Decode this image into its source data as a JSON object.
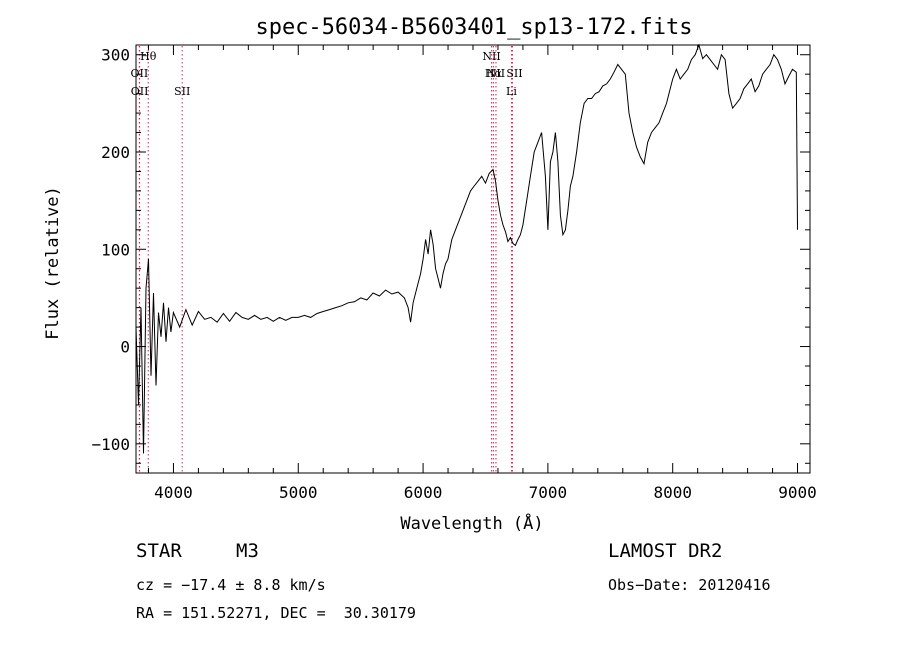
{
  "chart_data": {
    "type": "line",
    "title": "spec-56034-B5603401_sp13-172.fits",
    "xlabel": "Wavelength (Å)",
    "ylabel": "Flux (relative)",
    "xlim": [
      3700,
      9100
    ],
    "ylim": [
      -130,
      310
    ],
    "xticks": [
      4000,
      5000,
      6000,
      7000,
      8000,
      9000
    ],
    "yticks": [
      -100,
      0,
      100,
      200,
      300
    ],
    "series": [
      {
        "name": "flux",
        "x": [
          3700,
          3720,
          3740,
          3760,
          3780,
          3800,
          3820,
          3840,
          3860,
          3880,
          3900,
          3920,
          3940,
          3960,
          3980,
          4000,
          4050,
          4100,
          4150,
          4200,
          4250,
          4300,
          4350,
          4400,
          4450,
          4500,
          4550,
          4600,
          4650,
          4700,
          4750,
          4800,
          4850,
          4900,
          4950,
          5000,
          5050,
          5100,
          5150,
          5200,
          5250,
          5300,
          5350,
          5400,
          5450,
          5500,
          5550,
          5600,
          5650,
          5700,
          5750,
          5800,
          5850,
          5880,
          5900,
          5920,
          5950,
          5980,
          6000,
          6020,
          6040,
          6060,
          6080,
          6100,
          6120,
          6140,
          6160,
          6180,
          6200,
          6230,
          6260,
          6290,
          6320,
          6350,
          6380,
          6410,
          6440,
          6470,
          6500,
          6530,
          6560,
          6580,
          6600,
          6620,
          6640,
          6660,
          6680,
          6700,
          6720,
          6740,
          6760,
          6780,
          6800,
          6830,
          6860,
          6890,
          6920,
          6950,
          6980,
          7000,
          7020,
          7040,
          7060,
          7080,
          7100,
          7120,
          7140,
          7160,
          7180,
          7200,
          7230,
          7260,
          7290,
          7320,
          7350,
          7380,
          7410,
          7440,
          7470,
          7500,
          7530,
          7560,
          7590,
          7620,
          7650,
          7680,
          7710,
          7740,
          7770,
          7800,
          7830,
          7860,
          7890,
          7920,
          7950,
          7980,
          8000,
          8030,
          8060,
          8090,
          8120,
          8150,
          8180,
          8210,
          8240,
          8270,
          8300,
          8330,
          8360,
          8390,
          8420,
          8450,
          8480,
          8510,
          8540,
          8570,
          8600,
          8630,
          8660,
          8690,
          8720,
          8750,
          8780,
          8810,
          8840,
          8870,
          8900,
          8930,
          8960,
          8990,
          9000
        ],
        "values": [
          20,
          -60,
          40,
          -110,
          60,
          90,
          -30,
          55,
          -40,
          35,
          10,
          45,
          5,
          40,
          15,
          35,
          20,
          38,
          22,
          36,
          28,
          30,
          25,
          34,
          26,
          35,
          30,
          28,
          32,
          28,
          30,
          26,
          30,
          27,
          30,
          30,
          32,
          30,
          34,
          36,
          38,
          40,
          42,
          45,
          46,
          50,
          48,
          55,
          52,
          58,
          54,
          56,
          50,
          40,
          25,
          45,
          60,
          75,
          90,
          110,
          95,
          120,
          105,
          80,
          70,
          60,
          75,
          85,
          90,
          110,
          120,
          130,
          140,
          150,
          160,
          165,
          170,
          175,
          168,
          178,
          182,
          170,
          150,
          135,
          125,
          118,
          108,
          112,
          106,
          104,
          110,
          115,
          125,
          150,
          175,
          200,
          210,
          220,
          175,
          120,
          190,
          200,
          220,
          190,
          135,
          115,
          120,
          140,
          165,
          175,
          200,
          230,
          250,
          255,
          255,
          260,
          262,
          268,
          270,
          275,
          282,
          290,
          285,
          280,
          240,
          220,
          205,
          195,
          188,
          210,
          220,
          225,
          230,
          240,
          250,
          265,
          275,
          285,
          275,
          280,
          285,
          295,
          300,
          310,
          296,
          300,
          295,
          290,
          285,
          300,
          295,
          260,
          245,
          250,
          255,
          265,
          270,
          275,
          262,
          268,
          280,
          285,
          290,
          300,
          295,
          285,
          270,
          278,
          285,
          282,
          120
        ]
      }
    ],
    "emission_lines": [
      {
        "label": "Hθ",
        "x": 3798
      },
      {
        "label": "OII",
        "x": 3727
      },
      {
        "label": "OII",
        "x": 3729
      },
      {
        "label": "SII",
        "x": 4070
      },
      {
        "label": "NII",
        "x": 6549
      },
      {
        "label": "Hα",
        "x": 6563
      },
      {
        "label": "NII",
        "x": 6584
      },
      {
        "label": "SII",
        "x": 6716
      },
      {
        "label": "Li",
        "x": 6708
      }
    ]
  },
  "info": {
    "object_class": "STAR",
    "subclass": "M3",
    "survey": "LAMOST DR2",
    "cz": "cz = −17.4 ± 8.8 km/s",
    "obs_date": "Obs−Date: 20120416",
    "coords": "RA = 151.52271, DEC =  30.30179"
  },
  "colors": {
    "line": "#000000",
    "marker": "#e0204a",
    "background": "#ffffff"
  }
}
